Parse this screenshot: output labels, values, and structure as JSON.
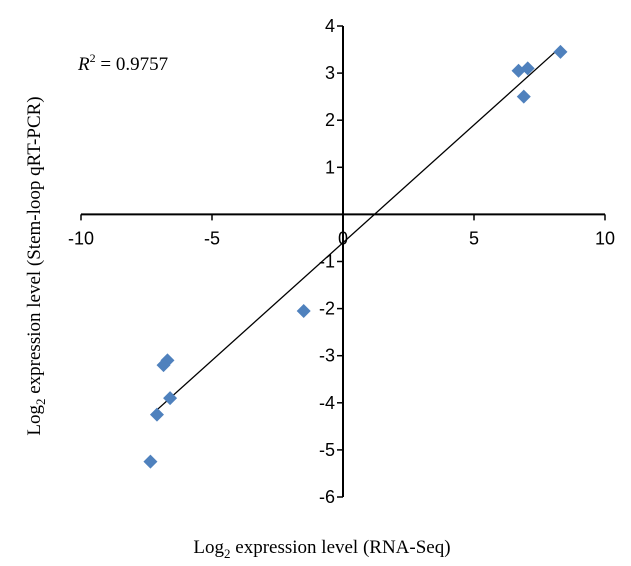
{
  "chart_data": {
    "type": "scatter",
    "x_label": {
      "base": "Log",
      "sub": "2",
      "rest": " expression level (RNA-Seq)"
    },
    "y_label": {
      "base": "Log",
      "sub": "2",
      "rest": " expression level (Stem-loop qRT-PCR)"
    },
    "annotation": {
      "symbol": "R",
      "sup": "2",
      "rest": " = 0.9757"
    },
    "xlim": [
      -10,
      10
    ],
    "ylim": [
      -6,
      4
    ],
    "x_ticks": [
      -10,
      -5,
      0,
      5,
      10
    ],
    "y_ticks": [
      4,
      3,
      2,
      1,
      -1,
      -2,
      -3,
      -4,
      -5,
      -6
    ],
    "x_tick_labels": [
      "-10",
      "-5",
      "0",
      "5",
      "10"
    ],
    "y_tick_labels": [
      "4",
      "3",
      "2",
      "1",
      "-1",
      "-2",
      "-3",
      "-4",
      "-5",
      "-6"
    ],
    "grid": false,
    "marker": "diamond",
    "marker_color": "#4f81bd",
    "points": [
      {
        "x": 8.3,
        "y": 3.45
      },
      {
        "x": 7.05,
        "y": 3.1
      },
      {
        "x": 6.7,
        "y": 3.05
      },
      {
        "x": 6.9,
        "y": 2.5
      },
      {
        "x": -1.5,
        "y": -2.05
      },
      {
        "x": -6.7,
        "y": -3.1
      },
      {
        "x": -6.85,
        "y": -3.2
      },
      {
        "x": -6.6,
        "y": -3.9
      },
      {
        "x": -7.1,
        "y": -4.25
      },
      {
        "x": -7.35,
        "y": -5.25
      }
    ],
    "trendline": {
      "x_start": -7.3,
      "x_end": 8.3,
      "slope": 0.5,
      "intercept": -0.6,
      "color": "#000000"
    }
  }
}
